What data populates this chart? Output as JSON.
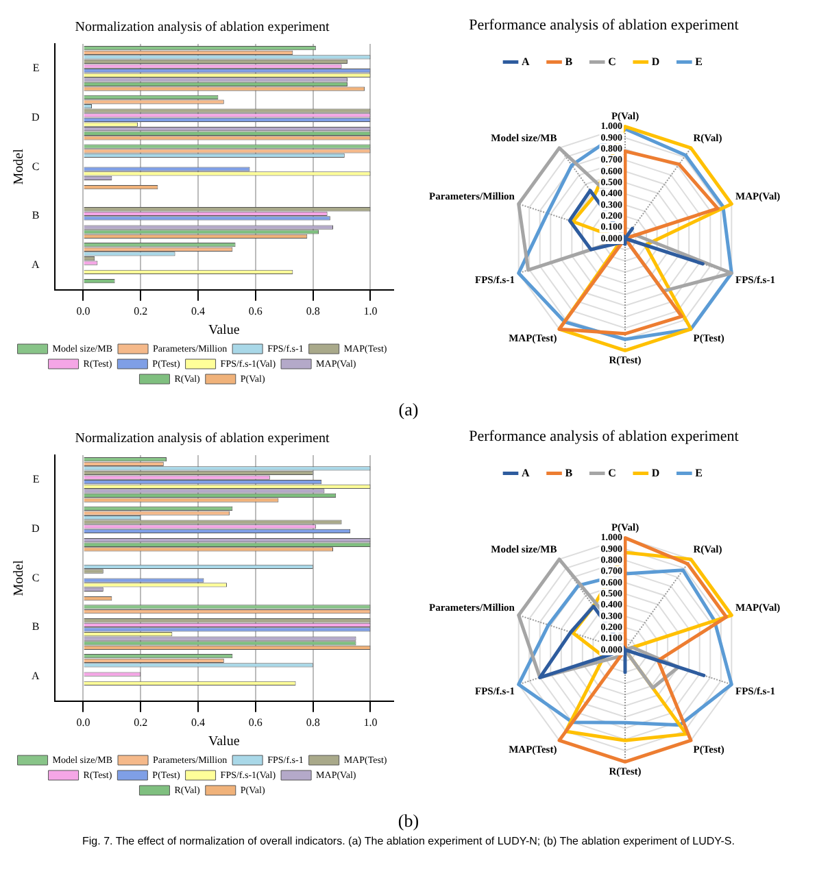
{
  "chart_data": [
    {
      "type": "bar",
      "orientation": "horizontal",
      "title": "Normalization analysis of ablation experiment",
      "xlabel": "Value",
      "ylabel": "Model",
      "categories": [
        "E",
        "D",
        "C",
        "B",
        "A"
      ],
      "xlim": [
        -0.1,
        1.08
      ],
      "xticks": [
        {
          "value": 0,
          "label": "0.0"
        },
        {
          "value": 0.2,
          "label": "0.2"
        },
        {
          "value": 0.4,
          "label": "0.4"
        },
        {
          "value": 0.6,
          "label": "0.6"
        },
        {
          "value": 0.8,
          "label": "0.8"
        },
        {
          "value": 1,
          "label": "1.0"
        }
      ],
      "grid": "x",
      "legend": "bottom",
      "annotations": [
        "(a)"
      ],
      "series": [
        {
          "name": "Model size/MB",
          "color": "#88c488",
          "values": [
            0.81,
            0.47,
            1.0,
            0,
            0.53
          ]
        },
        {
          "name": "Parameters/Million",
          "color": "#f5b98a",
          "values": [
            0.73,
            0.49,
            1.0,
            0,
            0.52
          ]
        },
        {
          "name": "FPS/f.s-1",
          "color": "#a9d8e8",
          "values": [
            1.0,
            0.03,
            0.91,
            0,
            0.32
          ]
        },
        {
          "name": "MAP(Test)",
          "color": "#a9a98a",
          "values": [
            0.92,
            1.0,
            0,
            1.0,
            0.04
          ]
        },
        {
          "name": "R(Test)",
          "color": "#f5a6e6",
          "values": [
            0.9,
            1.0,
            0,
            0.85,
            0.05
          ]
        },
        {
          "name": "P(Test)",
          "color": "#7f9fe6",
          "values": [
            1.0,
            1.0,
            0.58,
            0.86,
            0
          ]
        },
        {
          "name": "FPS/f.s-1(Val)",
          "color": "#ffff99",
          "values": [
            1.0,
            0.19,
            1.0,
            0,
            0.73
          ]
        },
        {
          "name": "MAP(Val)",
          "color": "#b4a9c9",
          "values": [
            0.92,
            1.0,
            0.1,
            0.87,
            0
          ]
        },
        {
          "name": "R(Val)",
          "color": "#7fbf7f",
          "values": [
            0.92,
            1.0,
            0,
            0.82,
            0.11
          ]
        },
        {
          "name": "P(Val)",
          "color": "#f0b27a",
          "values": [
            0.98,
            1.0,
            0.26,
            0.78,
            0
          ]
        }
      ]
    },
    {
      "type": "radar",
      "title": "Performance analysis of ablation experiment",
      "categories": [
        "P(Val)",
        "R(Val)",
        "MAP(Val)",
        "FPS/f.s-1",
        "P(Test)",
        "R(Test)",
        "MAP(Test)",
        "FPS/f.s-1",
        "Parameters/Million",
        "Model size/MB"
      ],
      "ylim": [
        0,
        1
      ],
      "yticks": [
        {
          "value": 0,
          "label": "0.000"
        },
        {
          "value": 0.1,
          "label": "0.100"
        },
        {
          "value": 0.2,
          "label": "0.200"
        },
        {
          "value": 0.3,
          "label": "0.300"
        },
        {
          "value": 0.4,
          "label": "0.400"
        },
        {
          "value": 0.5,
          "label": "0.500"
        },
        {
          "value": 0.6,
          "label": "0.600"
        },
        {
          "value": 0.7,
          "label": "0.700"
        },
        {
          "value": 0.8,
          "label": "0.800"
        },
        {
          "value": 0.9,
          "label": "0.900"
        },
        {
          "value": 1,
          "label": "1.000"
        }
      ],
      "grid": true,
      "legend": "top",
      "marker": "none",
      "series": [
        {
          "name": "A",
          "color": "#2e5c9e",
          "values": [
            0,
            0.11,
            0,
            0.73,
            0,
            0.05,
            0.04,
            0.32,
            0.52,
            0.53
          ]
        },
        {
          "name": "B",
          "color": "#ed7d31",
          "values": [
            0.78,
            0.82,
            0.87,
            0,
            0.86,
            0.85,
            1.0,
            0,
            0,
            0
          ]
        },
        {
          "name": "C",
          "color": "#a5a5a5",
          "values": [
            0.26,
            0,
            0.1,
            1.0,
            0.58,
            0,
            0,
            0.91,
            1.0,
            1.0
          ]
        },
        {
          "name": "D",
          "color": "#ffc000",
          "values": [
            1.0,
            1.0,
            1.0,
            0.19,
            1.0,
            1.0,
            1.0,
            0.03,
            0.49,
            0.47
          ]
        },
        {
          "name": "E",
          "color": "#5b9bd5",
          "values": [
            0.98,
            0.92,
            0.92,
            1.0,
            1.0,
            0.9,
            0.92,
            1.0,
            0.73,
            0.81
          ]
        }
      ]
    },
    {
      "type": "bar",
      "orientation": "horizontal",
      "title": "Normalization analysis of ablation experiment",
      "xlabel": "Value",
      "ylabel": "Model",
      "categories": [
        "E",
        "D",
        "C",
        "B",
        "A"
      ],
      "xlim": [
        -0.1,
        1.08
      ],
      "xticks": [
        {
          "value": 0,
          "label": "0.0"
        },
        {
          "value": 0.2,
          "label": "0.2"
        },
        {
          "value": 0.4,
          "label": "0.4"
        },
        {
          "value": 0.6,
          "label": "0.6"
        },
        {
          "value": 0.8,
          "label": "0.8"
        },
        {
          "value": 1,
          "label": "1.0"
        }
      ],
      "grid": "x",
      "legend": "bottom",
      "annotations": [
        "(b)",
        "Fig. 7. The effect of normalization of overall indicators. (a) The ablation experiment of LUDY-N; (b) The ablation experiment of LUDY-S."
      ],
      "series": [
        {
          "name": "Model size/MB",
          "color": "#88c488",
          "values": [
            0.29,
            0.52,
            0,
            1.0,
            0.52
          ]
        },
        {
          "name": "Parameters/Million",
          "color": "#f5b98a",
          "values": [
            0.28,
            0.51,
            0,
            1.0,
            0.49
          ]
        },
        {
          "name": "FPS/f.s-1",
          "color": "#a9d8e8",
          "values": [
            1.0,
            0.2,
            0.8,
            0,
            0.8
          ]
        },
        {
          "name": "MAP(Test)",
          "color": "#a9a98a",
          "values": [
            0.8,
            0.9,
            0.07,
            1.0,
            0
          ]
        },
        {
          "name": "R(Test)",
          "color": "#f5a6e6",
          "values": [
            0.65,
            0.81,
            0,
            1.0,
            0.2
          ]
        },
        {
          "name": "P(Test)",
          "color": "#7f9fe6",
          "values": [
            0.83,
            0.93,
            0.42,
            1.0,
            0
          ]
        },
        {
          "name": "FPS/f.s-1(Val)",
          "color": "#ffff99",
          "values": [
            1.0,
            0,
            0.5,
            0.31,
            0.74
          ]
        },
        {
          "name": "MAP(Val)",
          "color": "#b4a9c9",
          "values": [
            0.84,
            1.0,
            0.07,
            0.95,
            0
          ]
        },
        {
          "name": "R(Val)",
          "color": "#7fbf7f",
          "values": [
            0.88,
            1.0,
            0,
            0.95,
            0
          ]
        },
        {
          "name": "P(Val)",
          "color": "#f0b27a",
          "values": [
            0.68,
            0.87,
            0.1,
            1.0,
            0
          ]
        }
      ]
    },
    {
      "type": "radar",
      "title": "Performance analysis of ablation experiment",
      "categories": [
        "P(Val)",
        "R(Val)",
        "MAP(Val)",
        "FPS/f.s-1",
        "P(Test)",
        "R(Test)",
        "MAP(Test)",
        "FPS/f.s-1",
        "Parameters/Million",
        "Model size/MB"
      ],
      "ylim": [
        0,
        1
      ],
      "yticks": [
        {
          "value": 0,
          "label": "0.000"
        },
        {
          "value": 0.1,
          "label": "0.100"
        },
        {
          "value": 0.2,
          "label": "0.200"
        },
        {
          "value": 0.3,
          "label": "0.300"
        },
        {
          "value": 0.4,
          "label": "0.400"
        },
        {
          "value": 0.5,
          "label": "0.500"
        },
        {
          "value": 0.6,
          "label": "0.600"
        },
        {
          "value": 0.7,
          "label": "0.700"
        },
        {
          "value": 0.8,
          "label": "0.800"
        },
        {
          "value": 0.9,
          "label": "0.900"
        },
        {
          "value": 1,
          "label": "1.000"
        }
      ],
      "grid": true,
      "legend": "top",
      "marker": "none",
      "series": [
        {
          "name": "A",
          "color": "#2e5c9e",
          "values": [
            0,
            0,
            0,
            0.74,
            0,
            0.2,
            0,
            0.8,
            0.51,
            0.48
          ]
        },
        {
          "name": "B",
          "color": "#ed7d31",
          "values": [
            1.0,
            0.95,
            0.95,
            0.31,
            1.0,
            1.0,
            1.0,
            0,
            0,
            0
          ]
        },
        {
          "name": "C",
          "color": "#a5a5a5",
          "values": [
            0.1,
            0,
            0.07,
            0.5,
            0.42,
            0,
            0.07,
            0.8,
            1.0,
            1.0
          ]
        },
        {
          "name": "D",
          "color": "#ffc000",
          "values": [
            0.87,
            1.0,
            1.0,
            0,
            0.93,
            0.81,
            0.9,
            0.2,
            0.49,
            0.48
          ]
        },
        {
          "name": "E",
          "color": "#5b9bd5",
          "values": [
            0.68,
            0.88,
            0.84,
            1.0,
            0.83,
            0.65,
            0.8,
            1.0,
            0.72,
            0.71
          ]
        }
      ]
    }
  ]
}
